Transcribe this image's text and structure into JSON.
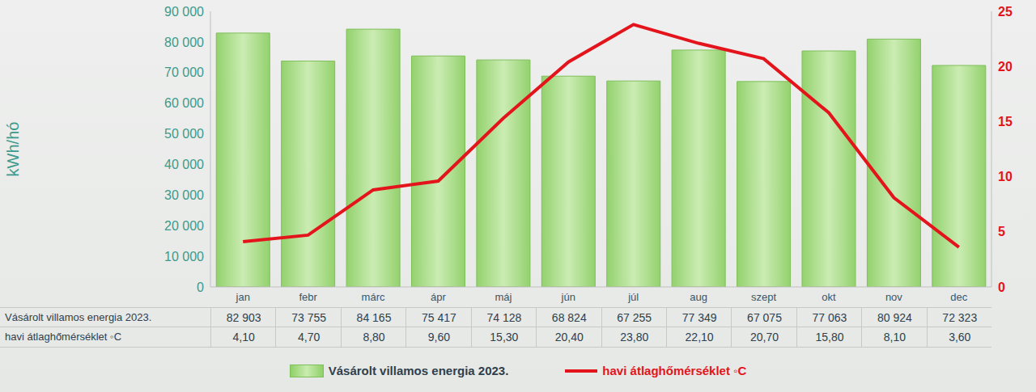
{
  "chart_data": {
    "type": "bar",
    "categories": [
      "jan",
      "febr",
      "márc",
      "ápr",
      "máj",
      "jún",
      "júl",
      "aug",
      "szept",
      "okt",
      "nov",
      "dec"
    ],
    "series": [
      {
        "name": "Vásárolt villamos energia 2023.",
        "type": "bar",
        "color": "#8fd067",
        "values": [
          82903,
          73755,
          84165,
          75417,
          74128,
          68824,
          67255,
          77349,
          67075,
          77063,
          80924,
          72323
        ],
        "value_labels": [
          "82 903",
          "73 755",
          "84 165",
          "75 417",
          "74 128",
          "68 824",
          "67 255",
          "77 349",
          "67 075",
          "77 063",
          "80 924",
          "72 323"
        ]
      },
      {
        "name": "havi átlaghőmérséklet ◦C",
        "type": "line",
        "color": "#e3141b",
        "axis": "y2",
        "values": [
          4.1,
          4.7,
          8.8,
          9.6,
          15.3,
          20.4,
          23.8,
          22.1,
          20.7,
          15.8,
          8.1,
          3.6
        ],
        "value_labels": [
          "4,10",
          "4,70",
          "8,80",
          "9,60",
          "15,30",
          "20,40",
          "23,80",
          "22,10",
          "20,70",
          "15,80",
          "8,10",
          "3,60"
        ]
      }
    ],
    "ylabel": "kWh/hó",
    "ylim": [
      0,
      90000
    ],
    "yticks": [
      0,
      {
        "value": 10000,
        "label": "10 000"
      },
      {
        "value": 20000,
        "label": "20 000"
      },
      {
        "value": 30000,
        "label": "30 000"
      },
      {
        "value": 40000,
        "label": "40 000"
      },
      {
        "value": 50000,
        "label": "50 000"
      },
      {
        "value": 60000,
        "label": "60 000"
      },
      {
        "value": 70000,
        "label": "70 000"
      },
      {
        "value": 80000,
        "label": "80 000"
      },
      {
        "value": 90000,
        "label": "90 000"
      }
    ],
    "y2lim": [
      0,
      25
    ],
    "y2ticks": [
      0,
      5,
      10,
      15,
      20,
      25
    ],
    "grid": false,
    "legend": "bottom"
  }
}
